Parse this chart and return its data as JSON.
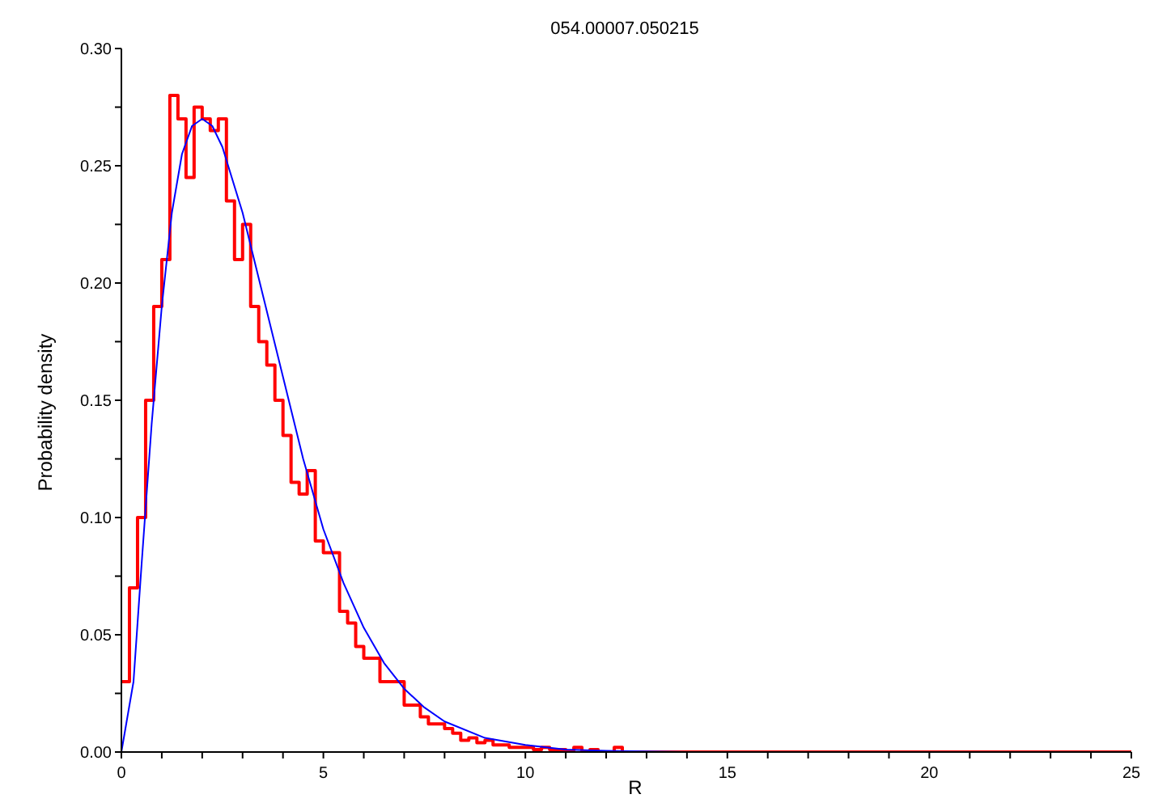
{
  "chart_data": {
    "type": "histogram",
    "title": "054.00007.050215",
    "xlabel": "R",
    "ylabel": "Probability density",
    "bins": [
      0,
      0.2,
      0.4,
      0.6,
      0.8,
      1.0,
      1.2,
      1.4,
      1.6,
      1.8,
      2.0,
      2.2,
      2.4,
      2.6,
      2.8,
      3.0,
      3.2,
      3.4,
      3.6,
      3.8,
      4.0,
      4.2,
      4.4,
      4.6,
      4.8,
      5.0,
      5.2,
      5.4,
      5.6,
      5.8,
      6.0,
      6.2,
      6.4,
      6.6,
      6.8,
      7.0,
      7.2,
      7.4,
      7.6,
      7.8,
      8.0,
      8.2,
      8.4,
      8.6,
      8.8,
      9.0,
      9.2,
      9.4,
      9.6,
      9.8,
      10.0,
      10.2,
      10.4,
      10.6,
      10.8,
      11.0,
      11.2,
      11.4,
      11.6,
      11.8,
      12.0,
      12.2,
      12.4,
      12.6,
      25
    ],
    "values": [
      0.03,
      0.07,
      0.1,
      0.15,
      0.19,
      0.21,
      0.28,
      0.27,
      0.245,
      0.275,
      0.27,
      0.265,
      0.27,
      0.235,
      0.21,
      0.225,
      0.19,
      0.175,
      0.165,
      0.15,
      0.135,
      0.115,
      0.11,
      0.12,
      0.09,
      0.085,
      0.085,
      0.06,
      0.055,
      0.045,
      0.04,
      0.04,
      0.03,
      0.03,
      0.03,
      0.02,
      0.02,
      0.015,
      0.012,
      0.012,
      0.01,
      0.008,
      0.005,
      0.006,
      0.004,
      0.005,
      0.003,
      0.003,
      0.002,
      0.002,
      0.002,
      0.001,
      0.002,
      0.001,
      0.001,
      0,
      0.002,
      0,
      0.001,
      0,
      0,
      0.002,
      0,
      0
    ],
    "color": "#ff0000",
    "series": [
      {
        "type": "line",
        "color": "#0000ff",
        "x": [
          0,
          0.3,
          0.5,
          0.75,
          1,
          1.25,
          1.5,
          1.75,
          2,
          2.25,
          2.5,
          3,
          3.5,
          4,
          4.5,
          5,
          5.5,
          6,
          6.5,
          7,
          7.5,
          8,
          9,
          10,
          11,
          12,
          14,
          25
        ],
        "values": [
          0,
          0.03,
          0.08,
          0.14,
          0.19,
          0.23,
          0.255,
          0.267,
          0.27,
          0.267,
          0.258,
          0.23,
          0.195,
          0.16,
          0.125,
          0.095,
          0.072,
          0.053,
          0.038,
          0.027,
          0.019,
          0.013,
          0.006,
          0.003,
          0.001,
          0.0005,
          0,
          0
        ]
      }
    ],
    "xlim": [
      0,
      25
    ],
    "xticks": [
      0,
      {
        "value": 1,
        "label": null
      },
      {
        "value": 2,
        "label": null
      },
      {
        "value": 3,
        "label": null
      },
      {
        "value": 4,
        "label": null
      },
      5,
      {
        "value": 6,
        "label": null
      },
      {
        "value": 7,
        "label": null
      },
      {
        "value": 8,
        "label": null
      },
      {
        "value": 9,
        "label": null
      },
      10,
      {
        "value": 11,
        "label": null
      },
      {
        "value": 12,
        "label": null
      },
      {
        "value": 13,
        "label": null
      },
      {
        "value": 14,
        "label": null
      },
      15,
      {
        "value": 16,
        "label": null
      },
      {
        "value": 17,
        "label": null
      },
      {
        "value": 18,
        "label": null
      },
      {
        "value": 19,
        "label": null
      },
      20,
      {
        "value": 21,
        "label": null
      },
      {
        "value": 22,
        "label": null
      },
      {
        "value": 23,
        "label": null
      },
      {
        "value": 24,
        "label": null
      },
      25
    ],
    "ylim": [
      0,
      0.3
    ],
    "yticks": [
      {
        "value": 0,
        "label": "0.00"
      },
      {
        "value": 0.025,
        "label": null
      },
      {
        "value": 0.05,
        "label": "0.05"
      },
      {
        "value": 0.075,
        "label": null
      },
      {
        "value": 0.1,
        "label": "0.10"
      },
      {
        "value": 0.125,
        "label": null
      },
      {
        "value": 0.15,
        "label": "0.15"
      },
      {
        "value": 0.175,
        "label": null
      },
      {
        "value": 0.2,
        "label": "0.20"
      },
      {
        "value": 0.225,
        "label": null
      },
      {
        "value": 0.25,
        "label": "0.25"
      },
      {
        "value": 0.275,
        "label": null
      },
      {
        "value": 0.3,
        "label": "0.30"
      }
    ],
    "grid": false
  }
}
